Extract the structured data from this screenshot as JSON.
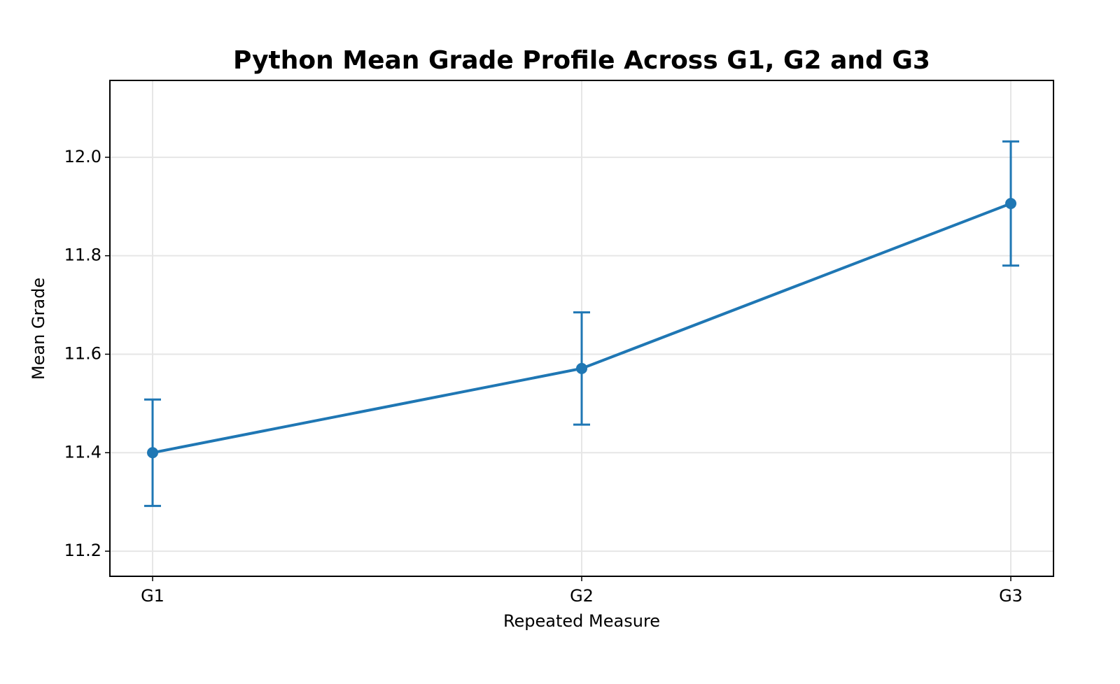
{
  "chart_data": {
    "type": "line",
    "title": "Python Mean Grade Profile Across G1, G2 and G3",
    "x_label": "Repeated Measure",
    "y_label": "Mean Grade",
    "categories": [
      "G1",
      "G2",
      "G3"
    ],
    "series": [
      {
        "color": "#1f77b4",
        "values": [
          11.4,
          11.571,
          11.906
        ],
        "errors": [
          0.108,
          0.114,
          0.126
        ]
      }
    ],
    "ylim": [
      11.149,
      12.156
    ],
    "yticks": [
      {
        "value": 11.2,
        "label": "11.2"
      },
      {
        "value": 11.4,
        "label": "11.4"
      },
      {
        "value": 11.6,
        "label": "11.6"
      },
      {
        "value": 11.8,
        "label": "11.8"
      },
      {
        "value": 12.0,
        "label": "12.0"
      }
    ],
    "grid": true
  }
}
